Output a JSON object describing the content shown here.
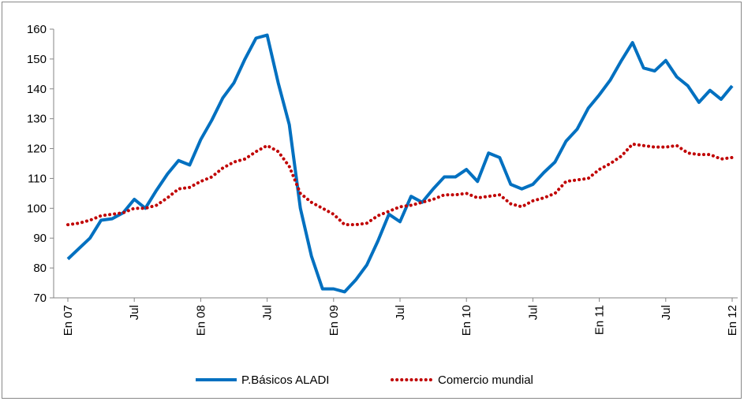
{
  "chart_data": {
    "type": "line",
    "categories": [
      "En 07",
      null,
      null,
      null,
      null,
      null,
      "Jul",
      null,
      null,
      null,
      null,
      null,
      "En 08",
      null,
      null,
      null,
      null,
      null,
      "Jul",
      null,
      null,
      null,
      null,
      null,
      "En 09",
      null,
      null,
      null,
      null,
      null,
      "Jul",
      null,
      null,
      null,
      null,
      null,
      "En 10",
      null,
      null,
      null,
      null,
      null,
      "Jul",
      null,
      null,
      null,
      null,
      null,
      "En 11",
      null,
      null,
      null,
      null,
      null,
      "Jul",
      null,
      null,
      null,
      null,
      null,
      "En 12"
    ],
    "series": [
      {
        "name": "P.Básicos ALADI",
        "color": "#0070c0",
        "style": "solid",
        "values": [
          83,
          86.5,
          90,
          96,
          96.5,
          98.5,
          103,
          100,
          106,
          111.5,
          116,
          114.5,
          123,
          129.5,
          137,
          142,
          150,
          157,
          158,
          142,
          128,
          100,
          84,
          73,
          73,
          72,
          76,
          81,
          89,
          98,
          95.5,
          104,
          102,
          106.5,
          110.5,
          110.5,
          113,
          109,
          118.5,
          117,
          108,
          106.5,
          108,
          112,
          115.5,
          122.5,
          126.5,
          133.5,
          138,
          143,
          149.5,
          155.5,
          147,
          146,
          149.5,
          144,
          141,
          135.5,
          139.5,
          136.5,
          141
        ]
      },
      {
        "name": "Comercio mundial",
        "color": "#c00000",
        "style": "dotted",
        "values": [
          94.5,
          95,
          96,
          97.5,
          98,
          98.5,
          100,
          100,
          101,
          103.5,
          106.5,
          107,
          109,
          110.5,
          113.5,
          115.5,
          116.5,
          119,
          121,
          119,
          114,
          105,
          102,
          100,
          98,
          94.5,
          94.5,
          95,
          97.5,
          99,
          100.5,
          101,
          102,
          103,
          104.5,
          104.5,
          105,
          103.5,
          104,
          104.5,
          101.5,
          100.5,
          102.5,
          103.5,
          105,
          109,
          109.5,
          110,
          113,
          115,
          117.5,
          121.5,
          121,
          120.5,
          120.5,
          121,
          118.5,
          118,
          118,
          116.5,
          117
        ]
      }
    ],
    "ylim": [
      70,
      160
    ],
    "yticks": [
      70,
      80,
      90,
      100,
      110,
      120,
      130,
      140,
      150,
      160
    ],
    "grid": false,
    "legend": "bottom"
  }
}
